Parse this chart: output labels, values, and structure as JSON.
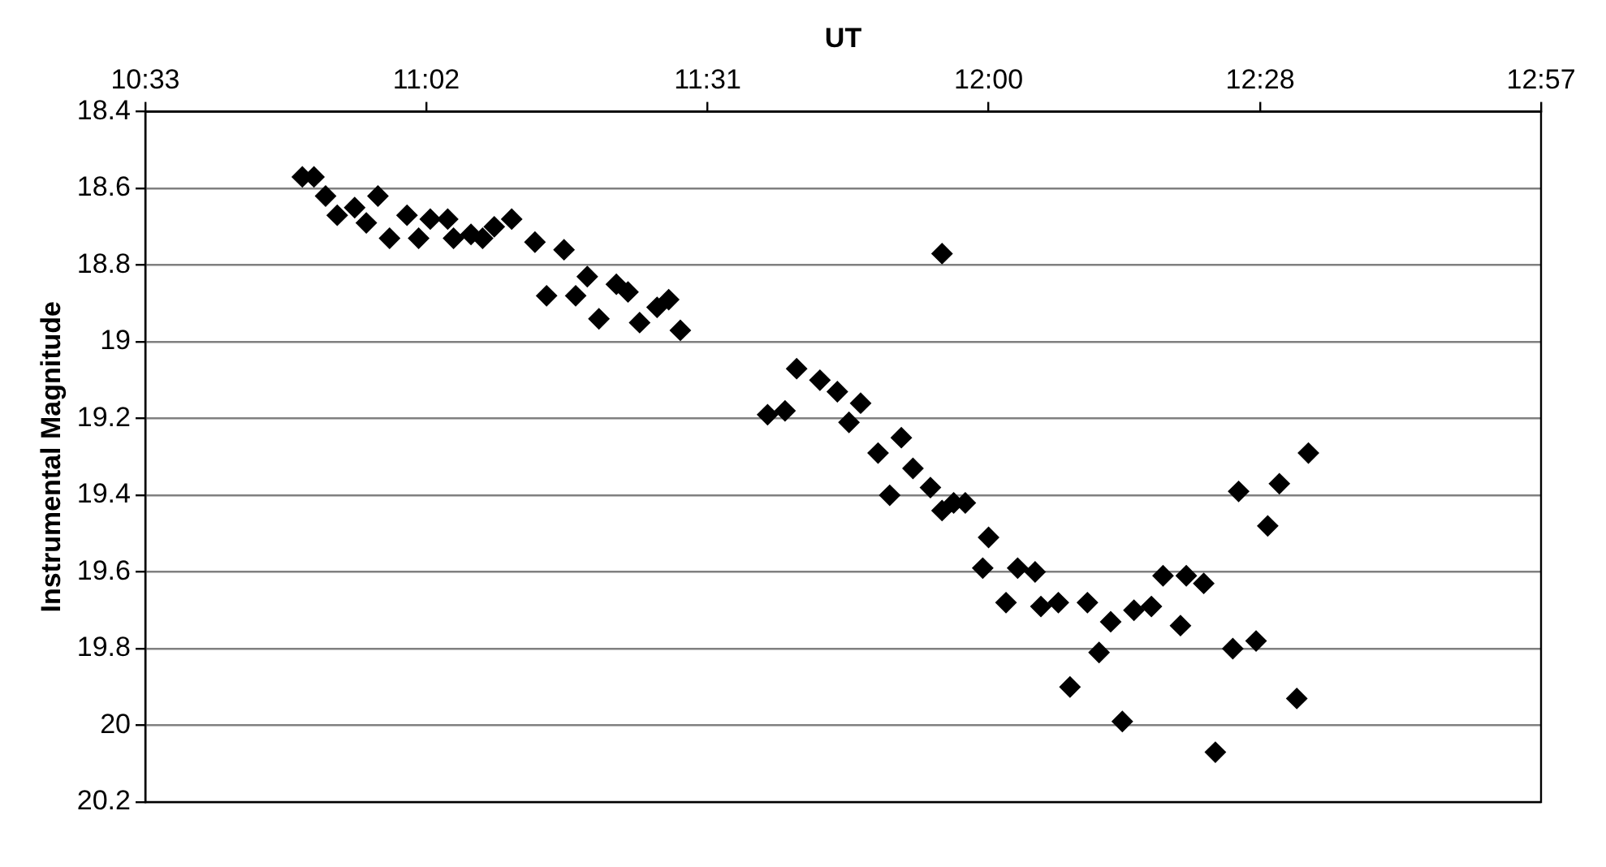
{
  "chart_data": {
    "type": "scatter",
    "xlabel": "UT",
    "ylabel": "Instrumental Magnitude",
    "marker": "diamond",
    "grid": "y",
    "legend": false,
    "xlim": [
      10.55,
      12.95
    ],
    "xticks": [
      {
        "value": 10.55,
        "label": "10:33"
      },
      {
        "value": 11.033,
        "label": "11:02"
      },
      {
        "value": 11.517,
        "label": "11:31"
      },
      {
        "value": 12.0,
        "label": "12:00"
      },
      {
        "value": 12.467,
        "label": "12:28"
      },
      {
        "value": 12.95,
        "label": "12:57"
      }
    ],
    "ylim": [
      20.2,
      18.4
    ],
    "yticks": [
      18.4,
      18.6,
      18.8,
      19,
      19.2,
      19.4,
      19.6,
      19.8,
      20,
      20.2
    ],
    "series": [
      {
        "color": "#000000",
        "x": [
          10.82,
          10.84,
          10.86,
          10.88,
          10.91,
          10.93,
          10.95,
          10.97,
          11.0,
          11.02,
          11.04,
          11.07,
          11.08,
          11.11,
          11.13,
          11.15,
          11.18,
          11.22,
          11.27,
          11.24,
          11.31,
          11.29,
          11.33,
          11.36,
          11.38,
          11.4,
          11.43,
          11.45,
          11.47,
          11.62,
          11.65,
          11.67,
          11.71,
          11.74,
          11.78,
          11.76,
          11.81,
          11.83,
          11.85,
          11.87,
          11.9,
          11.92,
          11.94,
          11.96,
          11.92,
          12.0,
          11.99,
          12.03,
          12.05,
          12.08,
          12.09,
          12.12,
          12.14,
          12.17,
          12.19,
          12.21,
          12.23,
          12.25,
          12.28,
          12.3,
          12.33,
          12.34,
          12.37,
          12.39,
          12.42,
          12.43,
          12.46,
          12.48,
          12.5,
          12.53,
          12.55
        ],
        "values": [
          18.57,
          18.57,
          18.62,
          18.67,
          18.65,
          18.69,
          18.62,
          18.73,
          18.67,
          18.73,
          18.68,
          18.68,
          18.73,
          18.72,
          18.73,
          18.7,
          18.68,
          18.74,
          18.76,
          18.88,
          18.83,
          18.88,
          18.94,
          18.85,
          18.87,
          18.95,
          18.91,
          18.89,
          18.97,
          19.19,
          19.18,
          19.07,
          19.1,
          19.13,
          19.16,
          19.21,
          19.29,
          19.4,
          19.25,
          19.33,
          19.38,
          19.44,
          19.42,
          19.42,
          18.77,
          19.51,
          19.59,
          19.68,
          19.59,
          19.6,
          19.69,
          19.68,
          19.9,
          19.68,
          19.81,
          19.73,
          19.99,
          19.7,
          19.69,
          19.61,
          19.74,
          19.61,
          19.63,
          20.07,
          19.8,
          19.39,
          19.78,
          19.48,
          19.37,
          19.93,
          19.29
        ]
      }
    ]
  }
}
